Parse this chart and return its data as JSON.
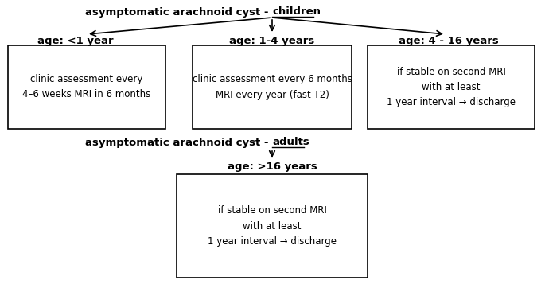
{
  "title_children_prefix": "asymptomatic arachnoid cyst - ",
  "title_children_suffix": "children",
  "title_adults_prefix": "asymptomatic arachnoid cyst - ",
  "title_adults_suffix": "adults",
  "age_labels": [
    "age: <1 year",
    "age: 1-4 years",
    "age: 4 - 16 years"
  ],
  "age_label_adult": "age: >16 years",
  "box_texts": [
    "clinic assessment every\n4–6 weeks MRI in 6 months",
    "clinic assessment every 6 months\nMRI every year (fast T2)",
    "if stable on second MRI\nwith at least\n1 year interval → discharge"
  ],
  "box_text_adult": "if stable on second MRI\nwith at least\n1 year interval → discharge",
  "bg_color": "#ffffff",
  "text_color": "#000000",
  "box_edge_color": "#000000",
  "font_size_title": 9.5,
  "font_size_label": 9.5,
  "font_size_box": 8.5
}
